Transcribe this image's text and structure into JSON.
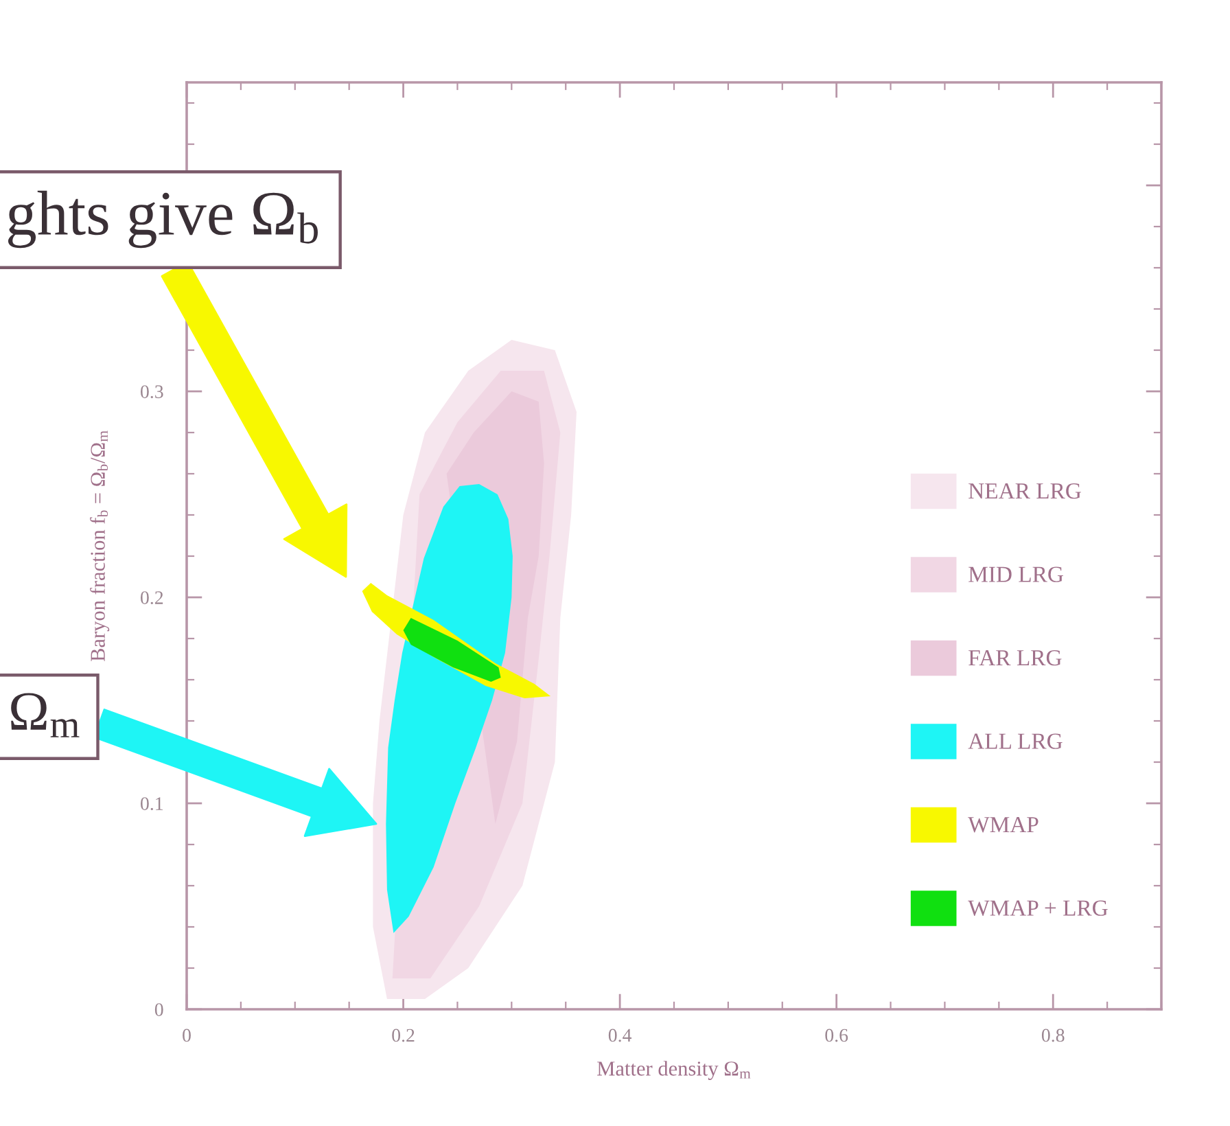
{
  "chart_data": {
    "type": "area",
    "xlabel": "Matter density Ω$_{m}$",
    "ylabel": "Baryon fraction f$_{b}$ = Ω$_{b}$/Ω$_{m}$",
    "xlim": [
      0,
      0.9
    ],
    "ylim": [
      0,
      0.45
    ],
    "xticks": [
      0,
      0.2,
      0.4,
      0.6,
      0.8
    ],
    "yticks": [
      0,
      0.1,
      0.2,
      0.3,
      {
        "value": 0.4,
        "label": null
      }
    ],
    "legend": "bottom right",
    "annotations": [
      "ghts give Ω$_{b}$",
      "Ω$_{m}$"
    ],
    "series": [
      {
        "name": "NEAR LRG",
        "color": "#f6e6ee",
        "x": [
          0.185,
          0.172,
          0.172,
          0.178,
          0.2,
          0.22,
          0.26,
          0.3,
          0.34,
          0.36,
          0.355,
          0.345,
          0.34,
          0.31,
          0.26,
          0.22
        ],
        "values": [
          0.005,
          0.04,
          0.1,
          0.14,
          0.24,
          0.28,
          0.31,
          0.325,
          0.32,
          0.29,
          0.24,
          0.19,
          0.12,
          0.06,
          0.02,
          0.005
        ]
      },
      {
        "name": "MID LRG",
        "color": "#f1d7e4",
        "x": [
          0.19,
          0.215,
          0.25,
          0.29,
          0.33,
          0.345,
          0.335,
          0.325,
          0.31,
          0.27,
          0.225
        ],
        "values": [
          0.015,
          0.25,
          0.285,
          0.31,
          0.31,
          0.28,
          0.22,
          0.17,
          0.1,
          0.05,
          0.015
        ]
      },
      {
        "name": "FAR LRG",
        "color": "#ebcadb",
        "x": [
          0.24,
          0.265,
          0.3,
          0.325,
          0.33,
          0.325,
          0.315,
          0.305,
          0.285
        ],
        "values": [
          0.26,
          0.28,
          0.3,
          0.295,
          0.265,
          0.22,
          0.19,
          0.13,
          0.09
        ]
      },
      {
        "name": "ALL LRG",
        "color": "#1ef5f5",
        "x": [
          0.27,
          0.287,
          0.297,
          0.301,
          0.3,
          0.294,
          0.282,
          0.267,
          0.248,
          0.228,
          0.205,
          0.191,
          0.185,
          0.184,
          0.186,
          0.192,
          0.199,
          0.219,
          0.237,
          0.252
        ],
        "values": [
          0.255,
          0.25,
          0.238,
          0.22,
          0.2,
          0.173,
          0.15,
          0.127,
          0.1,
          0.069,
          0.045,
          0.037,
          0.058,
          0.09,
          0.127,
          0.15,
          0.173,
          0.219,
          0.244,
          0.254
        ]
      },
      {
        "name": "WMAP",
        "color": "#f8f800",
        "x": [
          0.162,
          0.17,
          0.185,
          0.228,
          0.285,
          0.321,
          0.336,
          0.312,
          0.276,
          0.228,
          0.194,
          0.171
        ],
        "values": [
          0.203,
          0.207,
          0.201,
          0.189,
          0.168,
          0.158,
          0.152,
          0.151,
          0.157,
          0.171,
          0.182,
          0.193
        ]
      },
      {
        "name": "WMAP + LRG",
        "color": "#10e010",
        "x": [
          0.2,
          0.207,
          0.25,
          0.288,
          0.29,
          0.281,
          0.246,
          0.207
        ],
        "values": [
          0.184,
          0.19,
          0.179,
          0.166,
          0.161,
          0.159,
          0.166,
          0.177
        ]
      }
    ]
  }
}
